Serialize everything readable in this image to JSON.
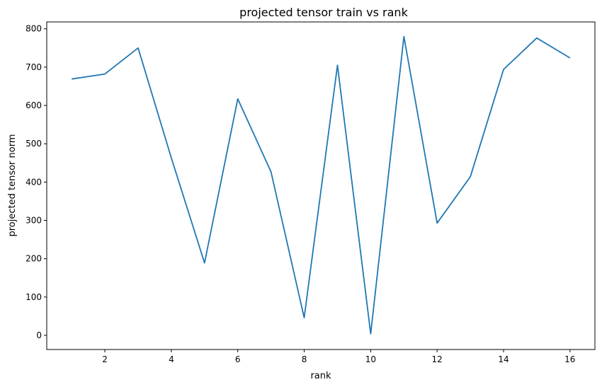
{
  "chart_data": {
    "type": "line",
    "title": "projected tensor train vs rank",
    "xlabel": "rank",
    "ylabel": "projected tensor norm",
    "xlim": [
      0.25,
      16.75
    ],
    "ylim": [
      -37,
      818
    ],
    "xticks": [
      2,
      4,
      6,
      8,
      10,
      12,
      14,
      16
    ],
    "yticks": [
      0,
      100,
      200,
      300,
      400,
      500,
      600,
      700,
      800
    ],
    "grid": false,
    "line_color": "#1f77b4",
    "series": [
      {
        "x": [
          1,
          2,
          3,
          4,
          5,
          6,
          7,
          8,
          9,
          10,
          11,
          12,
          13,
          14,
          15,
          16
        ],
        "values": [
          669,
          682,
          750,
          463,
          189,
          617,
          427,
          46,
          705,
          4,
          780,
          293,
          414,
          694,
          776,
          724
        ]
      }
    ]
  }
}
